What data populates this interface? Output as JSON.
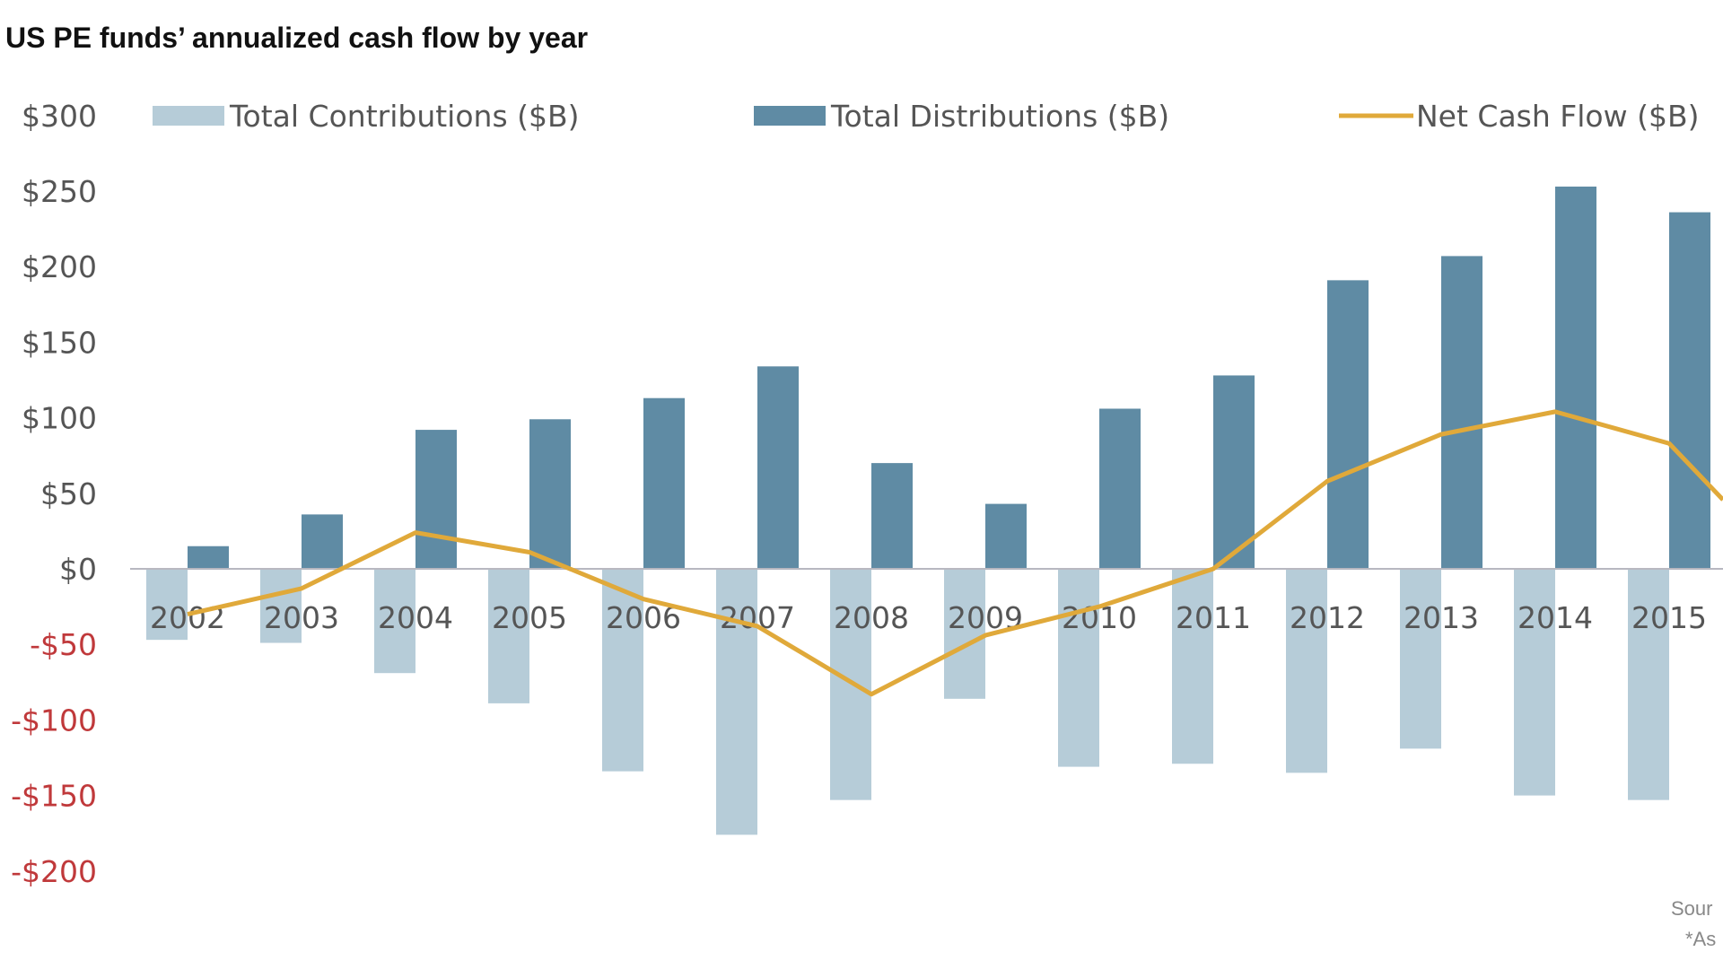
{
  "chart_data": {
    "type": "bar",
    "title": "US PE funds’ annualized cash flow by year",
    "xlabel": "",
    "ylabel": "",
    "ylim": [
      -200,
      300
    ],
    "yticks": [
      300,
      250,
      200,
      150,
      100,
      50,
      0,
      -50,
      -100,
      -150,
      -200
    ],
    "ytick_labels": [
      "$300",
      "$250",
      "$200",
      "$150",
      "$100",
      "$50",
      "$0",
      "-$50",
      "-$100",
      "-$150",
      "-$200"
    ],
    "categories": [
      "2002",
      "2003",
      "2004",
      "2005",
      "2006",
      "2007",
      "2008",
      "2009",
      "2010",
      "2011",
      "2012",
      "2013",
      "2014",
      "2015"
    ],
    "legend_position": "top",
    "series": [
      {
        "name": "Total Contributions ($B)",
        "kind": "bar",
        "color": "#b6ccd8",
        "values": [
          -47,
          -49,
          -69,
          -89,
          -134,
          -176,
          -153,
          -86,
          -131,
          -129,
          -135,
          -119,
          -150,
          -153
        ]
      },
      {
        "name": "Total Distributions ($B)",
        "kind": "bar",
        "color": "#5f8ba4",
        "values": [
          15,
          36,
          92,
          99,
          113,
          134,
          70,
          43,
          106,
          128,
          191,
          207,
          253,
          236
        ]
      },
      {
        "name": "Net Cash Flow ($B)",
        "kind": "line",
        "color": "#e0a93a",
        "values": [
          -30,
          -13,
          24,
          11,
          -20,
          -38,
          -83,
          -44,
          -25,
          0,
          58,
          89,
          104,
          83
        ]
      }
    ],
    "colors": {
      "negative_tick": "#c0393b",
      "positive_tick": "#555555",
      "axis": "#b8b8c0"
    }
  },
  "footnotes": {
    "source": "Sour",
    "asterisk": "*As"
  }
}
